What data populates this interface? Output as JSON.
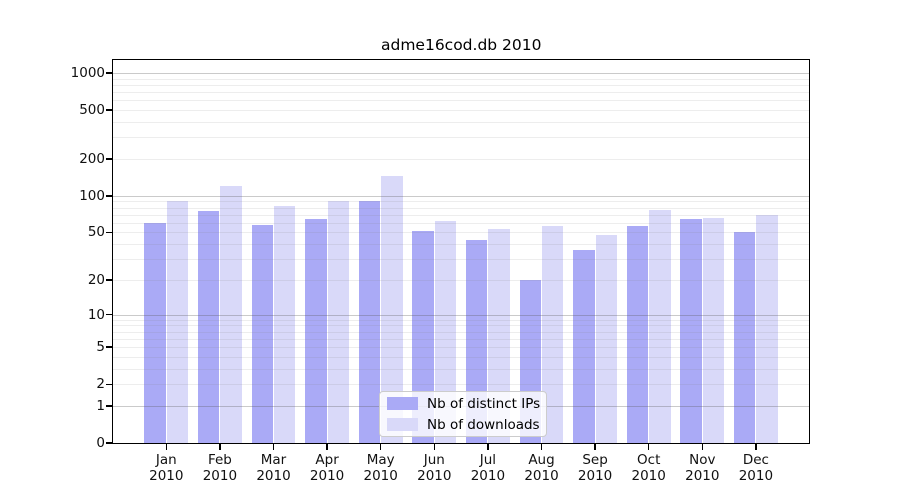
{
  "chart_data": {
    "type": "bar",
    "title": "adme16cod.db 2010",
    "categories": [
      "Jan",
      "Feb",
      "Mar",
      "Apr",
      "May",
      "Jun",
      "Jul",
      "Aug",
      "Sep",
      "Oct",
      "Nov",
      "Dec"
    ],
    "x_year_label": "2010",
    "series": [
      {
        "name": "Nb of distinct IPs",
        "color": "#aaaaf6",
        "values": [
          60,
          75,
          58,
          64,
          90,
          51,
          43,
          20,
          36,
          57,
          64,
          50
        ]
      },
      {
        "name": "Nb of downloads",
        "color": "#d9d9f9",
        "values": [
          91,
          120,
          82,
          91,
          145,
          62,
          53,
          56,
          48,
          77,
          66,
          69
        ]
      }
    ],
    "y_ticks": [
      0,
      1,
      2,
      5,
      10,
      20,
      50,
      100,
      200,
      500,
      1000
    ],
    "y_scale": "log1p",
    "ylim": [
      0,
      1000
    ],
    "grid": true,
    "legend_position": "bottom-center",
    "colors": {
      "background": "#ffffff",
      "spine": "#000000",
      "major_grid_rgba": "rgba(90,90,90,0.32)",
      "minor_grid_rgba": "rgba(130,130,130,0.14)",
      "tick_label": "#111111"
    }
  }
}
